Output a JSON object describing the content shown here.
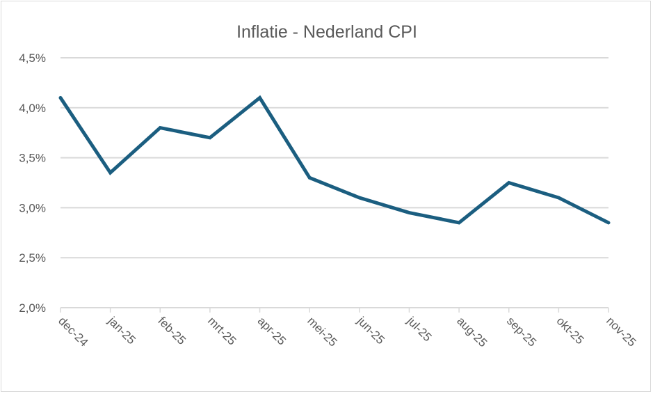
{
  "chart_data": {
    "type": "line",
    "title": "Inflatie - Nederland CPI",
    "xlabel": "",
    "ylabel": "",
    "categories": [
      "dec-24",
      "jan-25",
      "feb-25",
      "mrt-25",
      "apr-25",
      "mei-25",
      "jun-25",
      "jul-25",
      "aug-25",
      "sep-25",
      "okt-25",
      "nov-25"
    ],
    "series": [
      {
        "name": "CPI",
        "values": [
          4.1,
          3.35,
          3.8,
          3.7,
          4.1,
          3.3,
          3.1,
          2.95,
          2.85,
          3.25,
          3.1,
          2.85
        ],
        "color": "#1B5E80"
      }
    ],
    "ylim": [
      2.0,
      4.5
    ],
    "yticks": [
      2.0,
      2.5,
      3.0,
      3.5,
      4.0,
      4.5
    ],
    "ytick_labels": [
      "2,0%",
      "2,5%",
      "3,0%",
      "3,5%",
      "4,0%",
      "4,5%"
    ],
    "grid": true,
    "legend": "none"
  }
}
